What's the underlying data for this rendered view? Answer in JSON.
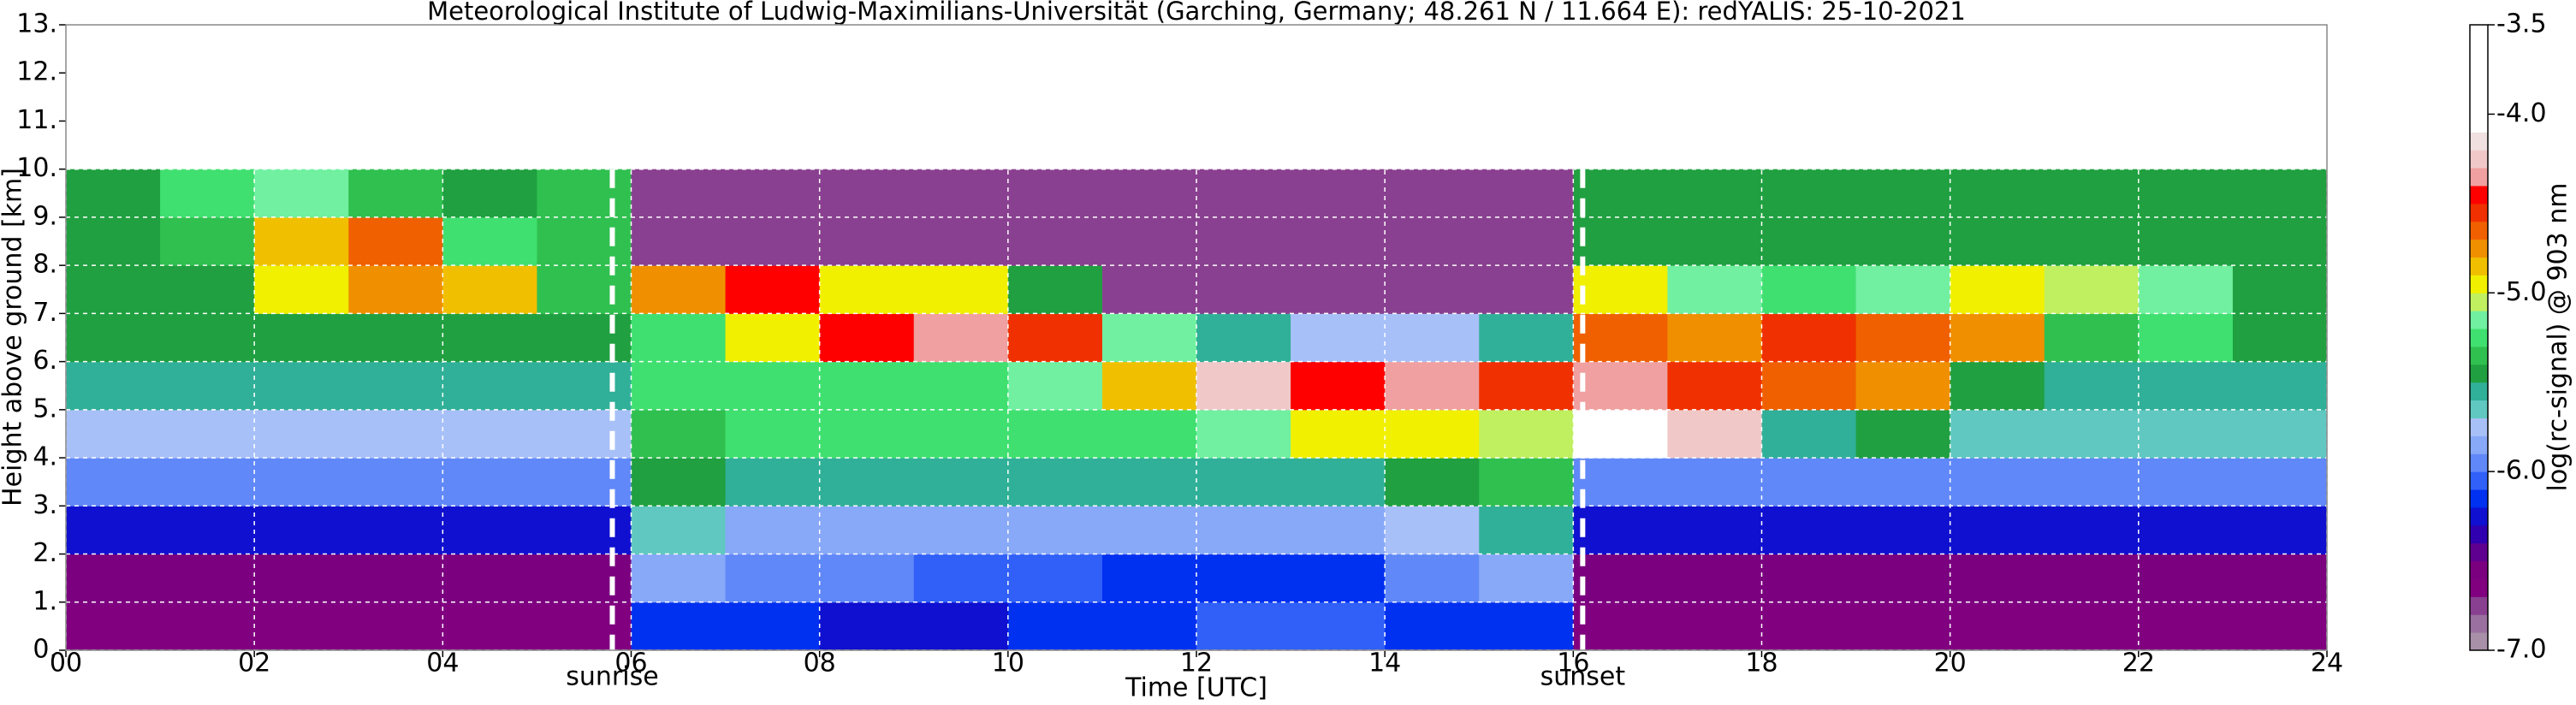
{
  "chart_data": {
    "type": "heatmap",
    "title": "Meteorological Institute of Ludwig-Maximilians-Universität (Garching, Germany; 48.261 N / 11.664 E):    redYALIS: 25-10-2021",
    "x_label": "Time [UTC]",
    "y_label": "Height above ground [km]",
    "colorbar_label": "log(rc-signal) @ 903 nm",
    "xlim": [
      0,
      24
    ],
    "ylim": [
      0,
      13
    ],
    "xticks": [
      {
        "value": 0,
        "label": "00"
      },
      {
        "value": 2,
        "label": "02"
      },
      {
        "value": 4,
        "label": "04"
      },
      {
        "value": 6,
        "label": "06"
      },
      {
        "value": 8,
        "label": "08"
      },
      10,
      12,
      14,
      16,
      18,
      20,
      22,
      24
    ],
    "yticks": [
      {
        "value": 0,
        "label": "0."
      },
      {
        "value": 1,
        "label": "1."
      },
      {
        "value": 2,
        "label": "2."
      },
      {
        "value": 3,
        "label": "3."
      },
      {
        "value": 4,
        "label": "4."
      },
      {
        "value": 5,
        "label": "5."
      },
      {
        "value": 6,
        "label": "6."
      },
      {
        "value": 7,
        "label": "7."
      },
      {
        "value": 8,
        "label": "8."
      },
      {
        "value": 9,
        "label": "9."
      },
      {
        "value": 10,
        "label": "10."
      },
      {
        "value": 11,
        "label": "11."
      },
      {
        "value": 12,
        "label": "12."
      },
      {
        "value": 13,
        "label": "13."
      }
    ],
    "grid": true,
    "clim": [
      -7,
      -3.5
    ],
    "cticks": [
      {
        "value": -7,
        "label": "-7.0"
      },
      {
        "value": -6,
        "label": "-6.0"
      },
      {
        "value": -5,
        "label": "-5.0"
      },
      {
        "value": -4,
        "label": "-4.0"
      },
      -3.5
    ],
    "colors": [
      "#a890a8",
      "#9a70a0",
      "#8a4090",
      "#800080",
      "#7a007f",
      "#600090",
      "#3000b0",
      "#1010d0",
      "#0030f0",
      "#3060f8",
      "#6088f8",
      "#88a8f8",
      "#a8c0f8",
      "#60c8c0",
      "#30b098",
      "#20a040",
      "#30c050",
      "#40e070",
      "#70f0a0",
      "#c0f060",
      "#f0f000",
      "#f0c000",
      "#f09000",
      "#f06000",
      "#f03000",
      "#ff0000",
      "#f0a0a0",
      "#f0c8c8",
      "#f0e0e0",
      "#ffffff",
      "#ffffff",
      "#ffffff",
      "#ffffff",
      "#ffffff",
      "#ffffff"
    ],
    "xbins": [
      0,
      1,
      2,
      3,
      4,
      5,
      6,
      7,
      8,
      9,
      10,
      11,
      12,
      13,
      14,
      15,
      16,
      17,
      18,
      19,
      20,
      21,
      22,
      23,
      24
    ],
    "ybins": [
      0,
      1,
      2,
      3,
      4,
      5,
      6,
      7,
      8,
      9,
      10
    ],
    "z": [
      [
        -6.7,
        -6.7,
        -6.7,
        -6.7,
        -6.7,
        -6.7,
        -6.2,
        -6.2,
        -6.3,
        -6.3,
        -6.2,
        -6.2,
        -6.1,
        -6.1,
        -6.2,
        -6.2,
        -6.7,
        -6.7,
        -6.7,
        -6.7,
        -6.7,
        -6.7,
        -6.7,
        -6.7
      ],
      [
        -6.6,
        -6.6,
        -6.6,
        -6.6,
        -6.6,
        -6.6,
        -5.9,
        -6.0,
        -6.0,
        -6.1,
        -6.1,
        -6.2,
        -6.2,
        -6.2,
        -6.0,
        -5.9,
        -6.6,
        -6.6,
        -6.6,
        -6.6,
        -6.6,
        -6.6,
        -6.6,
        -6.6
      ],
      [
        -6.3,
        -6.3,
        -6.3,
        -6.3,
        -6.3,
        -6.3,
        -5.7,
        -5.9,
        -5.9,
        -5.9,
        -5.9,
        -5.9,
        -5.9,
        -5.9,
        -5.8,
        -5.6,
        -6.3,
        -6.3,
        -6.3,
        -6.3,
        -6.3,
        -6.3,
        -6.3,
        -6.3
      ],
      [
        -6.0,
        -6.0,
        -6.0,
        -6.0,
        -6.0,
        -6.0,
        -5.5,
        -5.6,
        -5.6,
        -5.6,
        -5.6,
        -5.6,
        -5.6,
        -5.6,
        -5.5,
        -5.4,
        -6.0,
        -6.0,
        -6.0,
        -6.0,
        -6.0,
        -6.0,
        -6.0,
        -6.0
      ],
      [
        -5.8,
        -5.8,
        -5.8,
        -5.8,
        -5.8,
        -5.8,
        -5.4,
        -5.3,
        -5.3,
        -5.3,
        -5.3,
        -5.3,
        -5.2,
        -5.0,
        -5.0,
        -5.1,
        -4.0,
        -4.3,
        -5.6,
        -5.5,
        -5.7,
        -5.7,
        -5.7,
        -5.7
      ],
      [
        -5.6,
        -5.6,
        -5.6,
        -5.6,
        -5.6,
        -5.6,
        -5.3,
        -5.3,
        -5.3,
        -5.3,
        -5.2,
        -4.9,
        -4.3,
        -4.5,
        -4.4,
        -4.6,
        -4.4,
        -4.6,
        -4.7,
        -4.8,
        -5.5,
        -5.6,
        -5.6,
        -5.6
      ],
      [
        -5.5,
        -5.5,
        -5.5,
        -5.5,
        -5.5,
        -5.5,
        -5.3,
        -5.0,
        -4.5,
        -4.4,
        -4.6,
        -5.2,
        -5.6,
        -5.8,
        -5.8,
        -5.6,
        -4.7,
        -4.8,
        -4.6,
        -4.7,
        -4.8,
        -5.4,
        -5.3,
        -5.5
      ],
      [
        -5.5,
        -5.5,
        -5.0,
        -4.8,
        -4.9,
        -5.4,
        -4.8,
        -4.5,
        -5.0,
        -5.0,
        -5.5,
        -6.8,
        -6.8,
        -6.8,
        -6.8,
        -6.8,
        -5.0,
        -5.2,
        -5.3,
        -5.2,
        -5.0,
        -5.1,
        -5.2,
        -5.5
      ],
      [
        -5.5,
        -5.4,
        -4.9,
        -4.7,
        -5.3,
        -5.4,
        -6.8,
        -6.8,
        -6.8,
        -6.8,
        -6.8,
        -6.8,
        -6.8,
        -6.8,
        -6.8,
        -6.8,
        -5.5,
        -5.5,
        -5.5,
        -5.5,
        -5.5,
        -5.5,
        -5.5,
        -5.5
      ],
      [
        -5.5,
        -5.3,
        -5.2,
        -5.4,
        -5.5,
        -5.4,
        -6.8,
        -6.8,
        -6.8,
        -6.8,
        -6.8,
        -6.8,
        -6.8,
        -6.8,
        -6.8,
        -6.8,
        -5.5,
        -5.5,
        -5.5,
        -5.5,
        -5.5,
        -5.5,
        -5.5,
        -5.5
      ]
    ],
    "annotations": [
      {
        "x": 5.8,
        "label": "sunrise"
      },
      {
        "x": 16.1,
        "label": "sunset"
      }
    ]
  }
}
